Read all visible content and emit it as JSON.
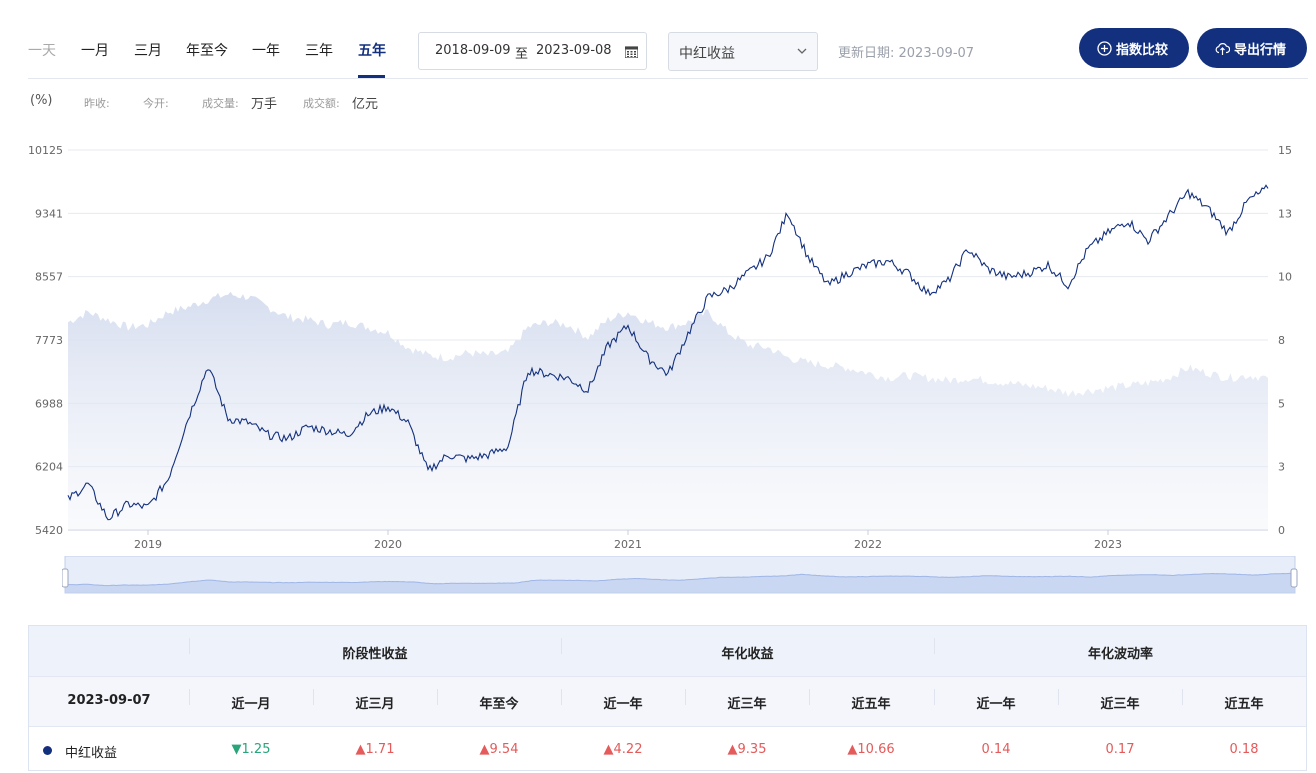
{
  "toolbar": {
    "tabs": [
      {
        "label": "一天",
        "state": "muted"
      },
      {
        "label": "一月",
        "state": "normal"
      },
      {
        "label": "三月",
        "state": "normal"
      },
      {
        "label": "年至今",
        "state": "normal"
      },
      {
        "label": "一年",
        "state": "normal"
      },
      {
        "label": "三年",
        "state": "normal"
      },
      {
        "label": "五年",
        "state": "active"
      }
    ],
    "date_start": "2018-09-09",
    "date_sep": "至",
    "date_end": "2023-09-08",
    "calendar_icon": "calendar-icon",
    "select_value": "中红收益",
    "update_label": "更新日期: 2023-09-07",
    "compare_button": "指数比较",
    "export_button": "导出行情"
  },
  "legend": {
    "unit": "(%)",
    "prev_close_label": "昨收:",
    "prev_close_value": "",
    "open_label": "今开:",
    "open_value": "",
    "volume_label": "成交量:",
    "volume_value": "万手",
    "amount_label": "成交额:",
    "amount_value": "亿元"
  },
  "chart_data": {
    "type": "line",
    "x_ticks": [
      "2019",
      "2020",
      "2021",
      "2022",
      "2023"
    ],
    "left_axis": {
      "ticks": [
        "10125",
        "9341",
        "8557",
        "7773",
        "6988",
        "6204",
        "5420"
      ],
      "range": [
        5420,
        10125
      ]
    },
    "right_axis": {
      "ticks": [
        "15",
        "13",
        "10",
        "8",
        "5",
        "3",
        "0"
      ],
      "range": [
        0,
        15
      ]
    },
    "series": [
      {
        "kind": "line",
        "color": "#13307e",
        "x": [
          "2018-09",
          "2018-10",
          "2018-11",
          "2018-12",
          "2019-01",
          "2019-02",
          "2019-03",
          "2019-04",
          "2019-05",
          "2019-06",
          "2019-07",
          "2019-08",
          "2019-09",
          "2019-10",
          "2019-11",
          "2019-12",
          "2020-01",
          "2020-02",
          "2020-03",
          "2020-04",
          "2020-05",
          "2020-06",
          "2020-07",
          "2020-08",
          "2020-09",
          "2020-10",
          "2020-11",
          "2020-12",
          "2021-01",
          "2021-02",
          "2021-03",
          "2021-04",
          "2021-05",
          "2021-06",
          "2021-07",
          "2021-08",
          "2021-09",
          "2021-10",
          "2021-11",
          "2021-12",
          "2022-01",
          "2022-02",
          "2022-03",
          "2022-04",
          "2022-05",
          "2022-06",
          "2022-07",
          "2022-08",
          "2022-09",
          "2022-10",
          "2022-11",
          "2022-12",
          "2023-01",
          "2023-02",
          "2023-03",
          "2023-04",
          "2023-05",
          "2023-06",
          "2023-07",
          "2023-08",
          "2023-09"
        ],
        "values": [
          5800,
          5990,
          5560,
          5740,
          5700,
          6050,
          6800,
          7450,
          6800,
          6750,
          6600,
          6550,
          6700,
          6650,
          6600,
          6850,
          6950,
          6750,
          6150,
          6350,
          6300,
          6350,
          6450,
          7400,
          7350,
          7300,
          7150,
          7700,
          7950,
          7550,
          7350,
          7850,
          8300,
          8400,
          8600,
          8800,
          9350,
          8800,
          8450,
          8600,
          8700,
          8750,
          8600,
          8350,
          8500,
          8900,
          8650,
          8550,
          8600,
          8700,
          8450,
          8900,
          9100,
          9250,
          9000,
          9300,
          9600,
          9400,
          9100,
          9500,
          9650
        ]
      },
      {
        "kind": "area",
        "color": "#cfd8ec",
        "x": [
          "2018-09",
          "2018-10",
          "2018-11",
          "2018-12",
          "2019-01",
          "2019-02",
          "2019-03",
          "2019-04",
          "2019-05",
          "2019-06",
          "2019-07",
          "2019-08",
          "2019-09",
          "2019-10",
          "2019-11",
          "2019-12",
          "2020-01",
          "2020-02",
          "2020-03",
          "2020-04",
          "2020-05",
          "2020-06",
          "2020-07",
          "2020-08",
          "2020-09",
          "2020-10",
          "2020-11",
          "2020-12",
          "2021-01",
          "2021-02",
          "2021-03",
          "2021-04",
          "2021-05",
          "2021-06",
          "2021-07",
          "2021-08",
          "2021-09",
          "2021-10",
          "2021-11",
          "2021-12",
          "2022-01",
          "2022-02",
          "2022-03",
          "2022-04",
          "2022-05",
          "2022-06",
          "2022-07",
          "2022-08",
          "2022-09",
          "2022-10",
          "2022-11",
          "2022-12",
          "2023-01",
          "2023-02",
          "2023-03",
          "2023-04",
          "2023-05",
          "2023-06",
          "2023-07",
          "2023-08",
          "2023-09"
        ],
        "values": [
          8.2,
          8.6,
          8.3,
          8.0,
          8.1,
          8.6,
          8.8,
          9.1,
          9.3,
          9.2,
          8.8,
          8.4,
          8.3,
          8.1,
          8.2,
          8.0,
          7.8,
          7.2,
          6.9,
          6.8,
          7.0,
          6.9,
          7.0,
          8.0,
          8.2,
          8.1,
          7.6,
          8.3,
          8.6,
          8.2,
          8.0,
          8.2,
          8.6,
          7.8,
          7.3,
          7.2,
          6.8,
          6.6,
          6.5,
          6.4,
          6.2,
          6.0,
          6.1,
          6.0,
          5.9,
          6.0,
          5.9,
          5.8,
          5.7,
          5.6,
          5.4,
          5.5,
          5.6,
          5.7,
          5.8,
          6.0,
          6.4,
          6.2,
          6.0,
          6.1,
          6.0
        ]
      }
    ]
  },
  "table": {
    "group_headers": [
      "阶段性收益",
      "年化收益",
      "年化波动率"
    ],
    "date": "2023-09-07",
    "columns": [
      "近一月",
      "近三月",
      "年至今",
      "近一年",
      "近三年",
      "近五年",
      "近一年",
      "近三年",
      "近五年"
    ],
    "rows": [
      {
        "name": "中红收益",
        "values": [
          {
            "text": "1.25",
            "dir": "down"
          },
          {
            "text": "1.71",
            "dir": "up"
          },
          {
            "text": "9.54",
            "dir": "up"
          },
          {
            "text": "4.22",
            "dir": "up"
          },
          {
            "text": "9.35",
            "dir": "up"
          },
          {
            "text": "10.66",
            "dir": "up"
          },
          {
            "text": "0.14",
            "dir": "none"
          },
          {
            "text": "0.17",
            "dir": "none"
          },
          {
            "text": "0.18",
            "dir": "none"
          }
        ]
      }
    ],
    "up_arrow": "▲",
    "down_arrow": "▼"
  }
}
